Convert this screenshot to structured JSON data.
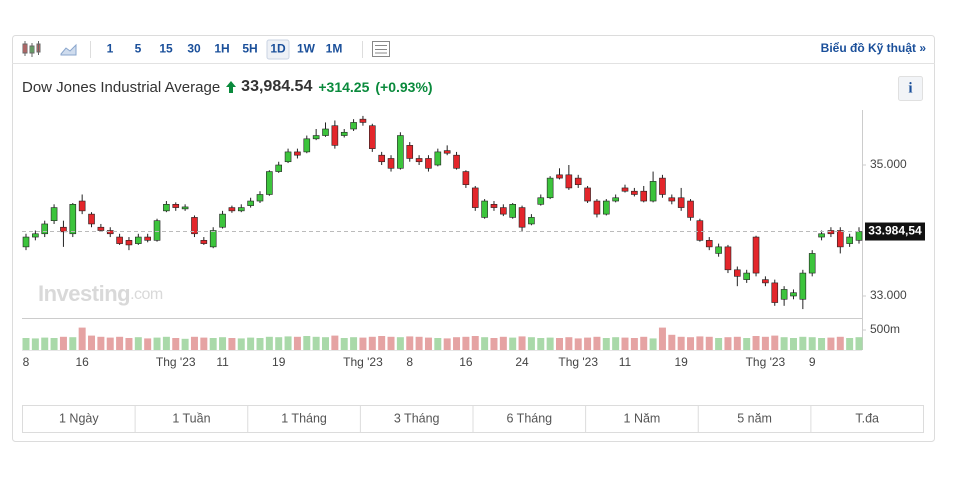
{
  "toolbar": {
    "timeframes": [
      "1",
      "5",
      "15",
      "30",
      "1H",
      "5H",
      "1D",
      "1W",
      "1M"
    ],
    "active": "1D",
    "link": "Biểu đồ Kỹ thuật »"
  },
  "header": {
    "title": "Dow Jones Industrial Average",
    "price": "33,984.54",
    "change": "+314.25",
    "change_pct": "(+0.93%)",
    "info": "i"
  },
  "watermark": {
    "brand": "Investing",
    "suffix": ".com"
  },
  "ranges": [
    "1 Ngày",
    "1 Tuần",
    "1 Tháng",
    "3 Tháng",
    "6 Tháng",
    "1 Năm",
    "5 năm",
    "T.đa"
  ],
  "chart_data": {
    "type": "candlestick",
    "categories": [
      "8",
      null,
      null,
      null,
      null,
      null,
      "16",
      null,
      null,
      null,
      null,
      null,
      null,
      null,
      null,
      null,
      "Thg '23",
      null,
      null,
      null,
      null,
      "11",
      null,
      null,
      null,
      null,
      null,
      "19",
      null,
      null,
      null,
      null,
      null,
      null,
      null,
      null,
      "Thg '23",
      null,
      null,
      null,
      null,
      "8",
      null,
      null,
      null,
      null,
      null,
      "16",
      null,
      null,
      null,
      null,
      null,
      "24",
      null,
      null,
      null,
      null,
      null,
      "Thg '23",
      null,
      null,
      null,
      null,
      "11",
      null,
      null,
      null,
      null,
      null,
      "19",
      null,
      null,
      null,
      null,
      null,
      null,
      null,
      null,
      "Thg '23",
      null,
      null,
      null,
      null,
      "9",
      null,
      null,
      null,
      null,
      null
    ],
    "open": [
      33750,
      33900,
      33950,
      34150,
      34050,
      33950,
      34450,
      34250,
      34050,
      34000,
      33900,
      33850,
      33800,
      33900,
      33850,
      34300,
      34400,
      34330,
      34200,
      33850,
      33750,
      34050,
      34350,
      34300,
      34380,
      34450,
      34550,
      34900,
      35050,
      35200,
      35200,
      35400,
      35450,
      35600,
      35450,
      35550,
      35700,
      35600,
      35150,
      35100,
      34950,
      35300,
      35100,
      35100,
      35000,
      35220,
      35150,
      34900,
      34650,
      34200,
      34400,
      34350,
      34200,
      34350,
      34100,
      34400,
      34500,
      34850,
      34850,
      34800,
      34650,
      34450,
      34250,
      34450,
      34650,
      34600,
      34600,
      34450,
      34800,
      34500,
      34500,
      34450,
      34150,
      33850,
      33650,
      33750,
      33400,
      33250,
      33900,
      33250,
      33200,
      32950,
      33000,
      32950,
      33350,
      33900,
      34000,
      34000,
      33800,
      33850
    ],
    "high": [
      33950,
      34000,
      34150,
      34400,
      34150,
      34420,
      34550,
      34280,
      34100,
      34050,
      33950,
      33900,
      33950,
      33950,
      34180,
      34450,
      34430,
      34400,
      34230,
      33900,
      34050,
      34300,
      34380,
      34400,
      34500,
      34600,
      34920,
      35050,
      35250,
      35250,
      35450,
      35550,
      35650,
      35680,
      35550,
      35700,
      35750,
      35630,
      35200,
      35150,
      35500,
      35350,
      35150,
      35150,
      35250,
      35300,
      35200,
      34920,
      34680,
      34480,
      34450,
      34400,
      34420,
      34380,
      34250,
      34550,
      34830,
      34950,
      35000,
      34850,
      34680,
      34480,
      34480,
      34550,
      34700,
      34650,
      34680,
      34900,
      34850,
      34550,
      34650,
      34480,
      34180,
      33900,
      33800,
      33780,
      33450,
      33400,
      33920,
      33300,
      33250,
      33150,
      33100,
      33400,
      33700,
      34000,
      34050,
      34050,
      33950,
      34050
    ],
    "low": [
      33700,
      33850,
      33900,
      34100,
      33750,
      33900,
      34250,
      34050,
      33980,
      33900,
      33780,
      33700,
      33780,
      33820,
      33830,
      34280,
      34300,
      34300,
      33900,
      33780,
      33730,
      34030,
      34270,
      34280,
      34350,
      34420,
      34530,
      34880,
      35030,
      35100,
      35180,
      35380,
      35430,
      35250,
      35420,
      35520,
      35600,
      35200,
      35000,
      34900,
      34930,
      35050,
      35000,
      34900,
      34980,
      35150,
      34930,
      34650,
      34300,
      34180,
      34300,
      34220,
      34180,
      33980,
      34080,
      34380,
      34480,
      34780,
      34620,
      34650,
      34420,
      34200,
      34230,
      34430,
      34580,
      34520,
      34430,
      34430,
      34500,
      34400,
      34300,
      34150,
      33830,
      33700,
      33600,
      33350,
      33150,
      33200,
      33300,
      33150,
      32850,
      32850,
      32950,
      32800,
      33300,
      33850,
      33900,
      33650,
      33750,
      33800
    ],
    "close": [
      33900,
      33950,
      34100,
      34350,
      33980,
      34400,
      34300,
      34100,
      34000,
      33950,
      33800,
      33780,
      33900,
      33850,
      34150,
      34400,
      34350,
      34360,
      33950,
      33800,
      34000,
      34250,
      34300,
      34350,
      34450,
      34550,
      34900,
      35000,
      35200,
      35150,
      35400,
      35450,
      35550,
      35300,
      35500,
      35650,
      35650,
      35250,
      35050,
      34950,
      35450,
      35100,
      35050,
      34950,
      35200,
      35180,
      34950,
      34700,
      34350,
      34450,
      34350,
      34250,
      34400,
      34050,
      34200,
      34500,
      34800,
      34800,
      34650,
      34700,
      34450,
      34250,
      34450,
      34500,
      34600,
      34550,
      34450,
      34750,
      34550,
      34450,
      34350,
      34200,
      33850,
      33750,
      33750,
      33400,
      33300,
      33350,
      33350,
      33200,
      32900,
      33100,
      33050,
      33350,
      33650,
      33950,
      33950,
      33750,
      33900,
      33984.54
    ],
    "volume": [
      300,
      290,
      310,
      300,
      330,
      320,
      560,
      360,
      330,
      310,
      330,
      300,
      320,
      290,
      310,
      330,
      300,
      280,
      330,
      310,
      300,
      320,
      300,
      290,
      310,
      300,
      330,
      320,
      340,
      330,
      350,
      330,
      320,
      360,
      300,
      320,
      310,
      330,
      350,
      330,
      320,
      340,
      330,
      310,
      300,
      290,
      320,
      330,
      350,
      320,
      300,
      330,
      310,
      340,
      320,
      300,
      310,
      300,
      320,
      290,
      310,
      330,
      300,
      320,
      310,
      300,
      330,
      290,
      560,
      380,
      330,
      320,
      340,
      330,
      300,
      320,
      330,
      300,
      350,
      330,
      360,
      320,
      300,
      330,
      320,
      300,
      310,
      330,
      300,
      320
    ],
    "ylim": [
      32664,
      35840
    ],
    "yticks": [
      {
        "value": 35000,
        "label": "35.000"
      },
      {
        "value": 33000,
        "label": "33.000"
      }
    ],
    "vlim": [
      0,
      800
    ],
    "vticks": [
      {
        "value": 500,
        "label": "500m"
      }
    ],
    "last_price": 33984.54,
    "last_price_label": "33.984,54",
    "up_color": "#3cc43c",
    "down_color": "#e3262b",
    "up_volume_color": "#a9d9a9",
    "down_volume_color": "#e5a3a3",
    "grid": false
  }
}
